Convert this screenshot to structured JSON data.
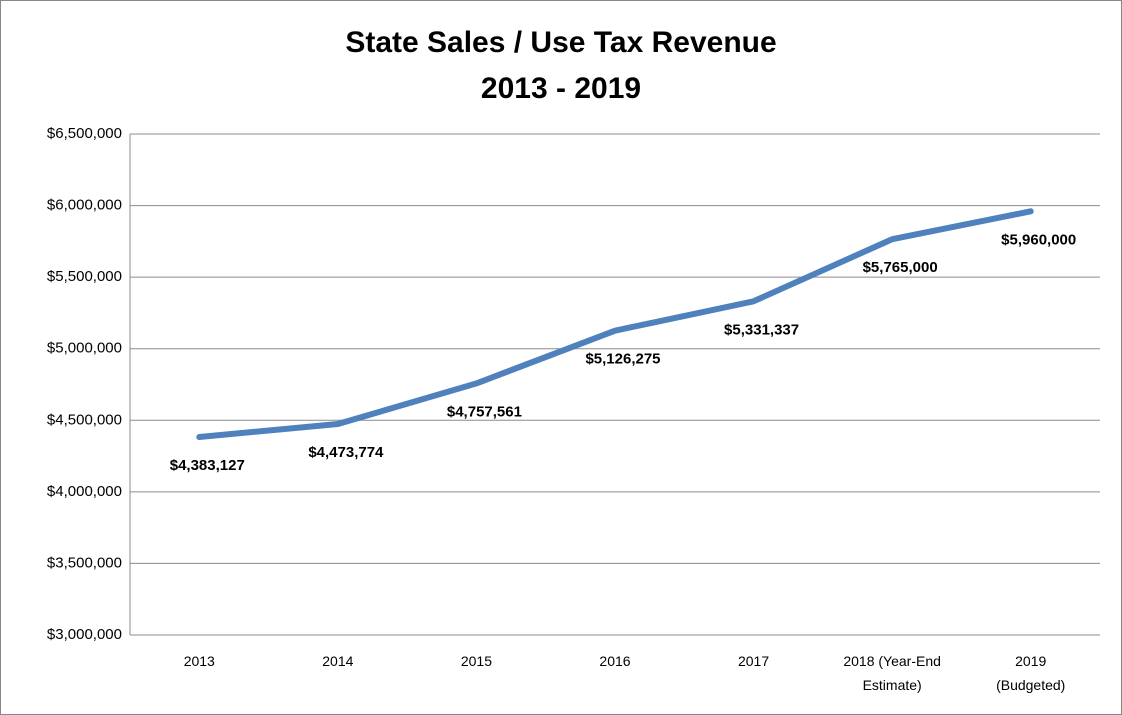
{
  "chart_data": {
    "type": "line",
    "title": "State Sales / Use Tax Revenue",
    "subtitle": "2013 - 2019",
    "categories": [
      "2013",
      "2014",
      "2015",
      "2016",
      "2017",
      "2018 (Year-End Estimate)",
      "2019 (Budgeted)"
    ],
    "series": [
      {
        "name": "Revenue",
        "color": "#4f81bd",
        "values": [
          4383127,
          4473774,
          4757561,
          5126275,
          5331337,
          5765000,
          5960000
        ],
        "value_labels": [
          "$4,383,127",
          "$4,473,774",
          "$4,757,561",
          "$5,126,275",
          "$5,331,337",
          "$5,765,000",
          "$5,960,000"
        ]
      }
    ],
    "ylim": [
      3000000,
      6500000
    ],
    "yticks": [
      {
        "value": 3000000,
        "label": "$3,000,000"
      },
      {
        "value": 3500000,
        "label": "$3,500,000"
      },
      {
        "value": 4000000,
        "label": "$4,000,000"
      },
      {
        "value": 4500000,
        "label": "$4,500,000"
      },
      {
        "value": 5000000,
        "label": "$5,000,000"
      },
      {
        "value": 5500000,
        "label": "$5,500,000"
      },
      {
        "value": 6000000,
        "label": "$6,000,000"
      },
      {
        "value": 6500000,
        "label": "$6,500,000"
      }
    ],
    "grid": true
  }
}
